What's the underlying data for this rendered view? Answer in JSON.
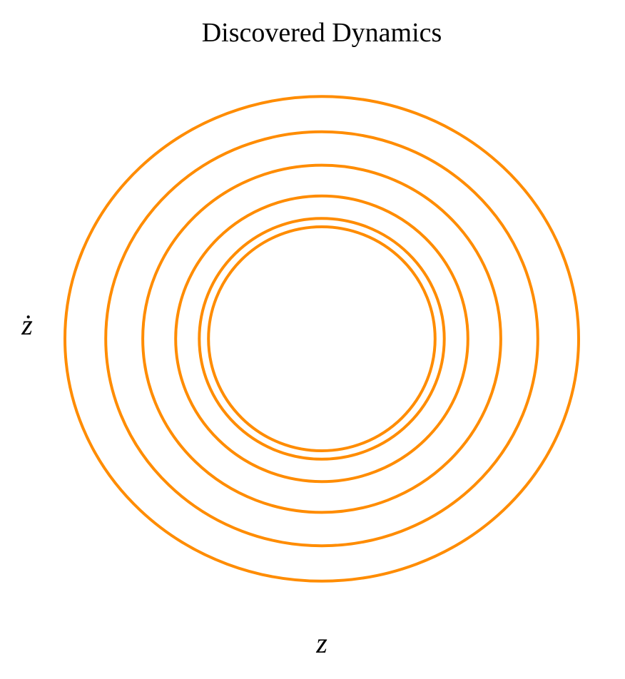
{
  "chart_data": {
    "type": "line",
    "title": "Discovered Dynamics",
    "xlabel": "z",
    "ylabel": "ż",
    "grid": false,
    "axes_visible": false,
    "series_color": "#ff8c00",
    "series": [
      {
        "semi_x": 1.0,
        "semi_y": 0.944
      },
      {
        "semi_x": 0.841,
        "semi_y": 0.806
      },
      {
        "semi_x": 0.697,
        "semi_y": 0.676
      },
      {
        "semi_x": 0.569,
        "semi_y": 0.556
      },
      {
        "semi_x": 0.477,
        "semi_y": 0.469
      },
      {
        "semi_x": 0.441,
        "semi_y": 0.436
      }
    ]
  }
}
